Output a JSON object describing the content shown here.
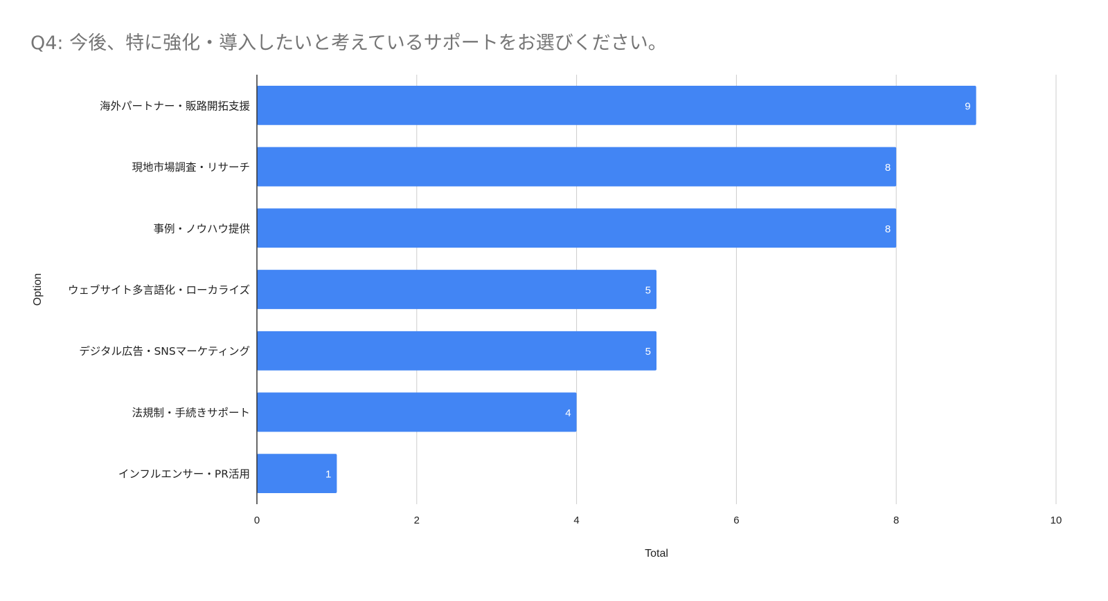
{
  "chart_data": {
    "type": "bar",
    "orientation": "horizontal",
    "title": "Q4: 今後、特に強化・導入したいと考えているサポートをお選びください。",
    "xlabel": "Total",
    "ylabel": "Option",
    "categories": [
      "海外パートナー・販路開拓支援",
      "現地市場調査・リサーチ",
      "事例・ノウハウ提供",
      "ウェブサイト多言語化・ローカライズ",
      "デジタル広告・SNSマーケティング",
      "法規制・手続きサポート",
      "インフルエンサー・PR活用"
    ],
    "values": [
      9,
      8,
      8,
      5,
      5,
      4,
      1
    ],
    "data_labels": [
      "9",
      "8",
      "8",
      "5",
      "5",
      "4",
      "1"
    ],
    "xlim": [
      0,
      10
    ],
    "xticks": [
      "0",
      "2",
      "4",
      "6",
      "8",
      "10"
    ],
    "grid": true,
    "legend": "none",
    "colors": {
      "bar": "#4285f4",
      "grid": "#cccccc",
      "axis": "#333333",
      "title": "#757575",
      "text": "#222222",
      "data_label": "#ffffff"
    }
  }
}
